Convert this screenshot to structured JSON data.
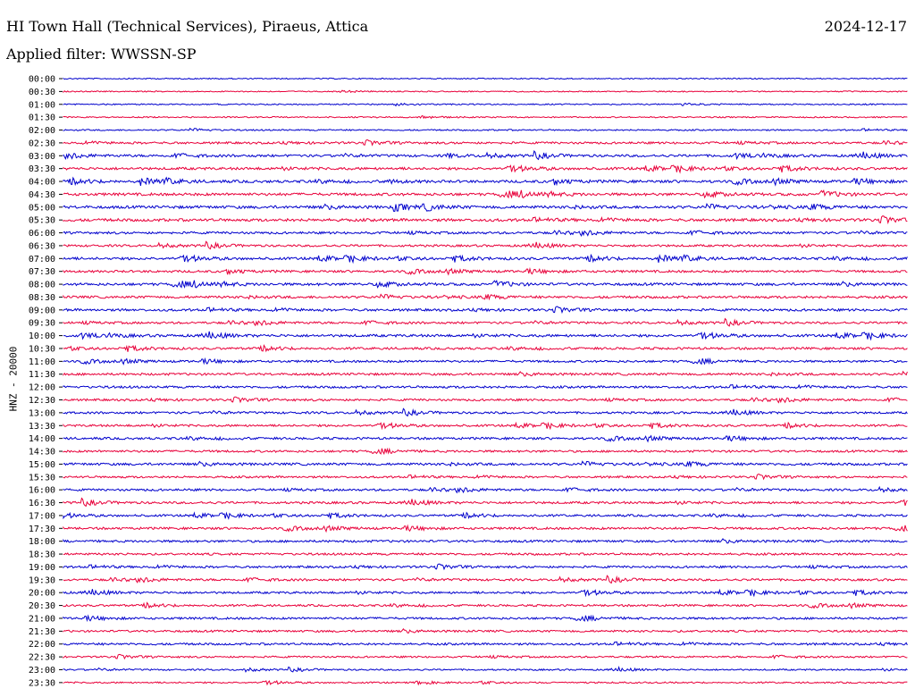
{
  "header": {
    "station": "HI Town Hall (Technical Services), Piraeus, Attica",
    "date": "2024-12-17",
    "filter": "Applied filter: WWSSN-SP"
  },
  "chart_data": {
    "type": "line",
    "ylabel": "HNZ - 20000",
    "row_labels": [
      "00:00",
      "00:30",
      "01:00",
      "01:30",
      "02:00",
      "02:30",
      "03:00",
      "03:30",
      "04:00",
      "04:30",
      "05:00",
      "05:30",
      "06:00",
      "06:30",
      "07:00",
      "07:30",
      "08:00",
      "08:30",
      "09:00",
      "09:30",
      "10:00",
      "10:30",
      "11:00",
      "11:30",
      "12:00",
      "12:30",
      "13:00",
      "13:30",
      "14:00",
      "14:30",
      "15:00",
      "15:30",
      "16:00",
      "16:30",
      "17:00",
      "17:30",
      "18:00",
      "18:30",
      "19:00",
      "19:30",
      "20:00",
      "20:30",
      "21:00",
      "21:30",
      "22:00",
      "22:30",
      "23:00",
      "23:30"
    ],
    "colors": [
      "#0000cc",
      "#e8003a"
    ],
    "activity": [
      0.15,
      0.15,
      0.2,
      0.2,
      0.25,
      0.55,
      0.65,
      0.7,
      0.75,
      0.75,
      0.8,
      0.8,
      0.6,
      0.55,
      0.7,
      0.6,
      0.7,
      0.65,
      0.65,
      0.55,
      0.7,
      0.6,
      0.55,
      0.6,
      0.6,
      0.55,
      0.55,
      0.55,
      0.6,
      0.55,
      0.65,
      0.5,
      0.55,
      0.6,
      0.55,
      0.6,
      0.6,
      0.55,
      0.55,
      0.55,
      0.55,
      0.5,
      0.55,
      0.5,
      0.55,
      0.4,
      0.3,
      0.3
    ]
  }
}
